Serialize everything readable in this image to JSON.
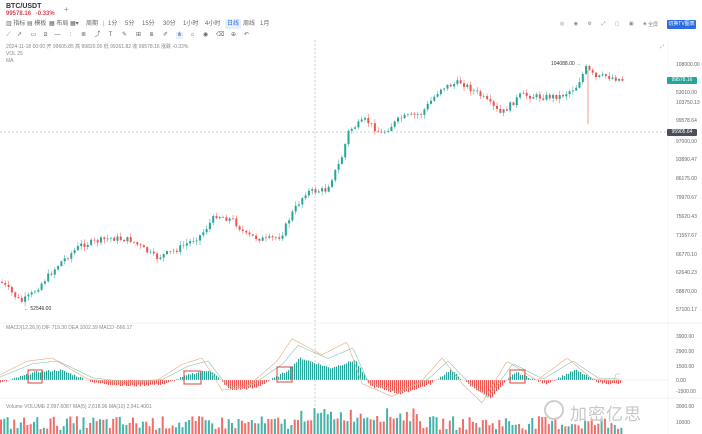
{
  "tab": {
    "symbol": "BTC/USDT",
    "price": "99578.16",
    "change": "-0.33%"
  },
  "toolbar": {
    "buttons": [
      "指标",
      "模板",
      "布局",
      "周期",
      "1分",
      "5分",
      "15分",
      "30分",
      "1小时",
      "4小时",
      "日线",
      "周线",
      "1月"
    ],
    "active_interval": "日线",
    "right_button": "切换TV图表",
    "right_extra": "全屏"
  },
  "legend": {
    "ohlc": "2024-11-18 00:00  开 99605.85  高 99820.00  低 99261.82  收 99578.16  涨跌 -0.33%",
    "vol_row": "VOL 25",
    "ma_row": "MA"
  },
  "price_axis": {
    "labels": [
      "108000.00",
      "103750.13",
      "99578.64",
      "97000.00",
      "93890.47",
      "86175.00",
      "79970.67",
      "75620.43",
      "71557.67",
      "66770.10",
      "62640.23",
      "58870.00",
      "57100.17",
      "53010.00"
    ],
    "current_price": "99578.16",
    "crosshair_price": "95905.64",
    "high_label": "104088.00",
    "low_label": "52546.00"
  },
  "macd": {
    "legend": "MACD(12,26,9)  DIF 719.30  DEA 1002.39  MACD -566.17",
    "axis": [
      "3900.00",
      "2900.00",
      "1500.00",
      "0.00",
      "-1500.00"
    ]
  },
  "volume": {
    "legend": "Volume  VOLUME 2,097.6087  MA(5) 2,618.96  MA(10) 2,941.4001",
    "axis": [
      "3000.00",
      "10000"
    ]
  },
  "watermark": "加密亿思",
  "colors": {
    "up": "#26a69a",
    "down": "#ef5350",
    "accent": "#2b6de0",
    "macd_box": "#d9443f"
  }
}
